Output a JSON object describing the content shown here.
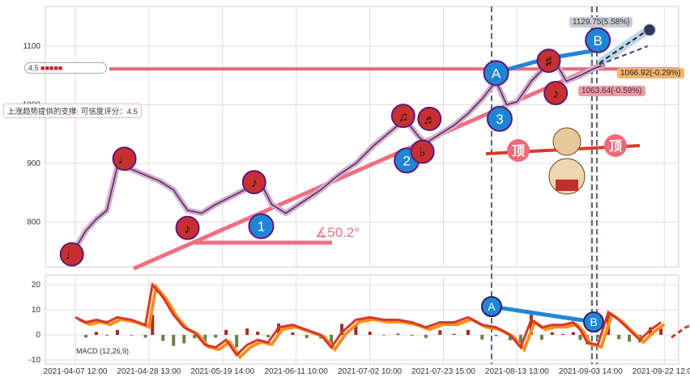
{
  "chart_data": {
    "type": "line",
    "title": "",
    "price_panel": {
      "yticks": [
        800,
        900,
        1000,
        1100
      ],
      "ylim": [
        700,
        1165
      ],
      "series_close": [
        [
          0,
          755
        ],
        [
          3,
          785
        ],
        [
          6,
          805
        ],
        [
          9,
          820
        ],
        [
          12,
          895
        ],
        [
          16,
          890
        ],
        [
          20,
          880
        ],
        [
          24,
          870
        ],
        [
          28,
          855
        ],
        [
          32,
          820
        ],
        [
          36,
          815
        ],
        [
          40,
          830
        ],
        [
          45,
          845
        ],
        [
          50,
          860
        ],
        [
          53,
          865
        ],
        [
          56,
          830
        ],
        [
          60,
          815
        ],
        [
          65,
          835
        ],
        [
          70,
          855
        ],
        [
          75,
          880
        ],
        [
          80,
          900
        ],
        [
          85,
          930
        ],
        [
          90,
          955
        ],
        [
          94,
          975
        ],
        [
          98,
          945
        ],
        [
          100,
          935
        ],
        [
          104,
          950
        ],
        [
          108,
          965
        ],
        [
          112,
          985
        ],
        [
          116,
          1010
        ],
        [
          120,
          1040
        ],
        [
          123,
          1000
        ],
        [
          126,
          1005
        ],
        [
          130,
          1040
        ],
        [
          134,
          1065
        ],
        [
          137,
          1072
        ],
        [
          140,
          1040
        ],
        [
          144,
          1050
        ],
        [
          148,
          1062
        ],
        [
          151,
          1068
        ]
      ],
      "support_level": 1061,
      "support_label": "上涨趋势提供的支撑: 可信度评分：4.5",
      "rating_label": "4.5",
      "angle_label": "∡50.2°",
      "top_label": "顶",
      "forecast_high": "1129.75(5.58%)",
      "forecast_mid": "1066.92(-0.29%)",
      "forecast_low": "1063.64(-0.59%)",
      "markers": [
        {
          "day": -1,
          "price": 745,
          "text": "♩",
          "kind": "note"
        },
        {
          "day": 14,
          "price": 908,
          "text": "♩",
          "kind": "note"
        },
        {
          "day": 32,
          "price": 790,
          "text": "♪",
          "kind": "note"
        },
        {
          "day": 51,
          "price": 868,
          "text": "♪",
          "kind": "note"
        },
        {
          "day": 53,
          "price": 793,
          "text": "1",
          "kind": "wave"
        },
        {
          "day": 93.5,
          "price": 981,
          "text": "♫",
          "kind": "note"
        },
        {
          "day": 101,
          "price": 976,
          "text": "♬",
          "kind": "note"
        },
        {
          "day": 94.5,
          "price": 905,
          "text": "2",
          "kind": "wave"
        },
        {
          "day": 99,
          "price": 920,
          "text": "♭",
          "kind": "note"
        },
        {
          "day": 120,
          "price": 1054,
          "text": "A",
          "kind": "wave"
        },
        {
          "day": 121,
          "price": 976,
          "text": "3",
          "kind": "wave"
        },
        {
          "day": 135,
          "price": 1075,
          "text": "♯",
          "kind": "note"
        },
        {
          "day": 137,
          "price": 1020,
          "text": "♪",
          "kind": "note"
        },
        {
          "day": 149,
          "price": 1110,
          "text": "B",
          "kind": "wave"
        }
      ]
    },
    "macd_panel": {
      "label": "MACD (12,26,9)",
      "yticks": [
        -10,
        0,
        10,
        20
      ],
      "ylim": [
        -11,
        23
      ],
      "macd": [
        [
          0,
          7
        ],
        [
          3,
          5
        ],
        [
          6,
          6
        ],
        [
          9,
          5
        ],
        [
          12,
          7
        ],
        [
          16,
          6
        ],
        [
          20,
          4
        ],
        [
          22,
          20
        ],
        [
          25,
          15
        ],
        [
          28,
          8
        ],
        [
          31,
          3
        ],
        [
          34,
          1
        ],
        [
          37,
          -4
        ],
        [
          40,
          -5
        ],
        [
          43,
          -2
        ],
        [
          46,
          -8
        ],
        [
          49,
          -4
        ],
        [
          52,
          -2
        ],
        [
          55,
          -3
        ],
        [
          58,
          3
        ],
        [
          62,
          4
        ],
        [
          66,
          2
        ],
        [
          70,
          0
        ],
        [
          73,
          -5
        ],
        [
          76,
          1
        ],
        [
          80,
          6
        ],
        [
          84,
          7
        ],
        [
          88,
          6
        ],
        [
          92,
          6
        ],
        [
          96,
          5
        ],
        [
          100,
          3
        ],
        [
          104,
          5
        ],
        [
          108,
          5
        ],
        [
          112,
          7
        ],
        [
          116,
          4
        ],
        [
          120,
          3
        ],
        [
          124,
          0
        ],
        [
          127,
          -5
        ],
        [
          130,
          6
        ],
        [
          133,
          3
        ],
        [
          136,
          4
        ],
        [
          139,
          4
        ],
        [
          142,
          5
        ],
        [
          144,
          2
        ],
        [
          146,
          -3
        ],
        [
          149,
          -4
        ],
        [
          152,
          9
        ],
        [
          155,
          6
        ],
        [
          158,
          2
        ],
        [
          161,
          -2
        ],
        [
          164,
          2
        ],
        [
          167,
          5
        ]
      ],
      "forecast": [
        [
          170,
          -1
        ],
        [
          174,
          3
        ],
        [
          178,
          5
        ],
        [
          184,
          6
        ],
        [
          190,
          7
        ]
      ],
      "divergence": [
        "A",
        "B"
      ]
    },
    "xticks": [
      "2021-04-07 12:00",
      "2021-04-28 13:00",
      "2021-05-19 14:00",
      "2021-06-11 10:00",
      "2021-07-02 10:00",
      "2021-07-23 15:00",
      "2021-08-13 13:00",
      "2021-09-03 14:00",
      "2021-09-22 12:00"
    ],
    "colors": {
      "support": "#e8677a",
      "trend": "#f07080",
      "wave": "#1f86d6",
      "note": "#c83030",
      "macd": "#d23a2a",
      "signal": "#ff8c1a",
      "bull": "#a52a2a",
      "bear": "#6b7f4a"
    }
  }
}
